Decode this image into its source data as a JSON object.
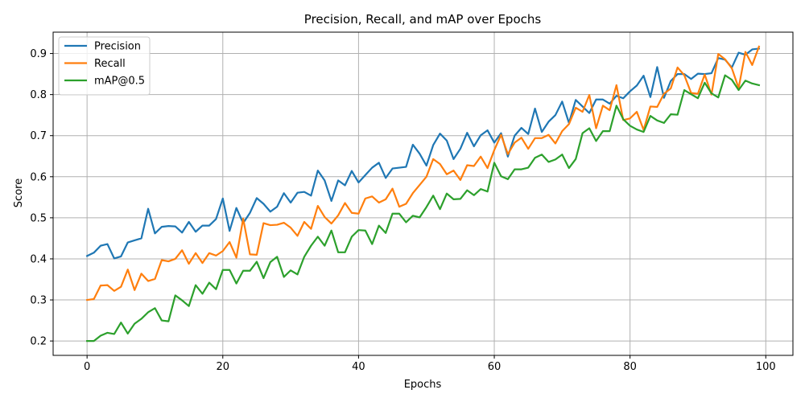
{
  "chart_data": {
    "type": "line",
    "title": "Precision, Recall, and mAP over Epochs",
    "xlabel": "Epochs",
    "ylabel": "Score",
    "xlim": [
      -5,
      104
    ],
    "ylim": [
      0.165,
      0.952
    ],
    "xticks": [
      0,
      20,
      40,
      60,
      80,
      100
    ],
    "yticks": [
      0.2,
      0.3,
      0.4,
      0.5,
      0.6,
      0.7,
      0.8,
      0.9
    ],
    "grid": true,
    "legend_position": "top-left",
    "x": [
      0,
      1,
      2,
      3,
      4,
      5,
      6,
      7,
      8,
      9,
      10,
      11,
      12,
      13,
      14,
      15,
      16,
      17,
      18,
      19,
      20,
      21,
      22,
      23,
      24,
      25,
      26,
      27,
      28,
      29,
      30,
      31,
      32,
      33,
      34,
      35,
      36,
      37,
      38,
      39,
      40,
      41,
      42,
      43,
      44,
      45,
      46,
      47,
      48,
      49,
      50,
      51,
      52,
      53,
      54,
      55,
      56,
      57,
      58,
      59,
      60,
      61,
      62,
      63,
      64,
      65,
      66,
      67,
      68,
      69,
      70,
      71,
      72,
      73,
      74,
      75,
      76,
      77,
      78,
      79,
      80,
      81,
      82,
      83,
      84,
      85,
      86,
      87,
      88,
      89,
      90,
      91,
      92,
      93,
      94,
      95,
      96,
      97,
      98,
      99
    ],
    "series": [
      {
        "name": "Precision",
        "color": "#1f77b4",
        "values": [
          0.407,
          0.415,
          0.432,
          0.436,
          0.401,
          0.406,
          0.44,
          0.445,
          0.45,
          0.522,
          0.462,
          0.478,
          0.48,
          0.479,
          0.464,
          0.49,
          0.466,
          0.481,
          0.481,
          0.497,
          0.547,
          0.468,
          0.524,
          0.487,
          0.512,
          0.548,
          0.534,
          0.515,
          0.527,
          0.56,
          0.537,
          0.561,
          0.563,
          0.554,
          0.615,
          0.591,
          0.541,
          0.591,
          0.579,
          0.614,
          0.586,
          0.604,
          0.622,
          0.634,
          0.597,
          0.62,
          0.622,
          0.624,
          0.678,
          0.656,
          0.627,
          0.677,
          0.705,
          0.688,
          0.643,
          0.668,
          0.707,
          0.674,
          0.701,
          0.713,
          0.683,
          0.706,
          0.649,
          0.7,
          0.719,
          0.704,
          0.766,
          0.709,
          0.734,
          0.75,
          0.783,
          0.731,
          0.787,
          0.771,
          0.755,
          0.788,
          0.788,
          0.778,
          0.797,
          0.791,
          0.808,
          0.822,
          0.846,
          0.794,
          0.867,
          0.792,
          0.833,
          0.85,
          0.85,
          0.838,
          0.851,
          0.85,
          0.852,
          0.889,
          0.885,
          0.866,
          0.902,
          0.897,
          0.91,
          0.912
        ]
      },
      {
        "name": "Recall",
        "color": "#ff7f0e",
        "values": [
          0.3,
          0.302,
          0.335,
          0.336,
          0.322,
          0.332,
          0.374,
          0.324,
          0.364,
          0.346,
          0.351,
          0.397,
          0.394,
          0.4,
          0.421,
          0.388,
          0.414,
          0.39,
          0.414,
          0.408,
          0.419,
          0.441,
          0.403,
          0.498,
          0.411,
          0.41,
          0.487,
          0.482,
          0.483,
          0.488,
          0.476,
          0.456,
          0.49,
          0.473,
          0.529,
          0.502,
          0.486,
          0.506,
          0.536,
          0.512,
          0.51,
          0.547,
          0.552,
          0.537,
          0.545,
          0.571,
          0.527,
          0.534,
          0.56,
          0.58,
          0.6,
          0.643,
          0.631,
          0.606,
          0.615,
          0.592,
          0.628,
          0.626,
          0.649,
          0.621,
          0.665,
          0.702,
          0.655,
          0.683,
          0.695,
          0.668,
          0.694,
          0.694,
          0.702,
          0.681,
          0.711,
          0.728,
          0.768,
          0.758,
          0.799,
          0.718,
          0.773,
          0.762,
          0.823,
          0.738,
          0.742,
          0.758,
          0.714,
          0.771,
          0.77,
          0.802,
          0.815,
          0.866,
          0.847,
          0.804,
          0.802,
          0.849,
          0.8,
          0.899,
          0.886,
          0.864,
          0.816,
          0.904,
          0.872,
          0.917
        ]
      },
      {
        "name": "mAP@0.5",
        "color": "#2ca02c",
        "values": [
          0.2,
          0.2,
          0.213,
          0.22,
          0.217,
          0.245,
          0.218,
          0.242,
          0.254,
          0.27,
          0.28,
          0.25,
          0.248,
          0.311,
          0.299,
          0.285,
          0.336,
          0.315,
          0.342,
          0.326,
          0.373,
          0.373,
          0.34,
          0.371,
          0.371,
          0.393,
          0.353,
          0.392,
          0.405,
          0.356,
          0.372,
          0.362,
          0.405,
          0.432,
          0.454,
          0.432,
          0.469,
          0.416,
          0.416,
          0.454,
          0.47,
          0.469,
          0.436,
          0.481,
          0.463,
          0.51,
          0.51,
          0.489,
          0.505,
          0.501,
          0.526,
          0.554,
          0.521,
          0.559,
          0.545,
          0.546,
          0.567,
          0.555,
          0.57,
          0.564,
          0.634,
          0.601,
          0.594,
          0.618,
          0.618,
          0.622,
          0.646,
          0.654,
          0.636,
          0.642,
          0.654,
          0.621,
          0.643,
          0.706,
          0.718,
          0.687,
          0.711,
          0.711,
          0.773,
          0.74,
          0.724,
          0.715,
          0.709,
          0.748,
          0.737,
          0.731,
          0.752,
          0.751,
          0.811,
          0.801,
          0.791,
          0.829,
          0.803,
          0.793,
          0.847,
          0.836,
          0.811,
          0.834,
          0.827,
          0.823
        ]
      }
    ]
  }
}
